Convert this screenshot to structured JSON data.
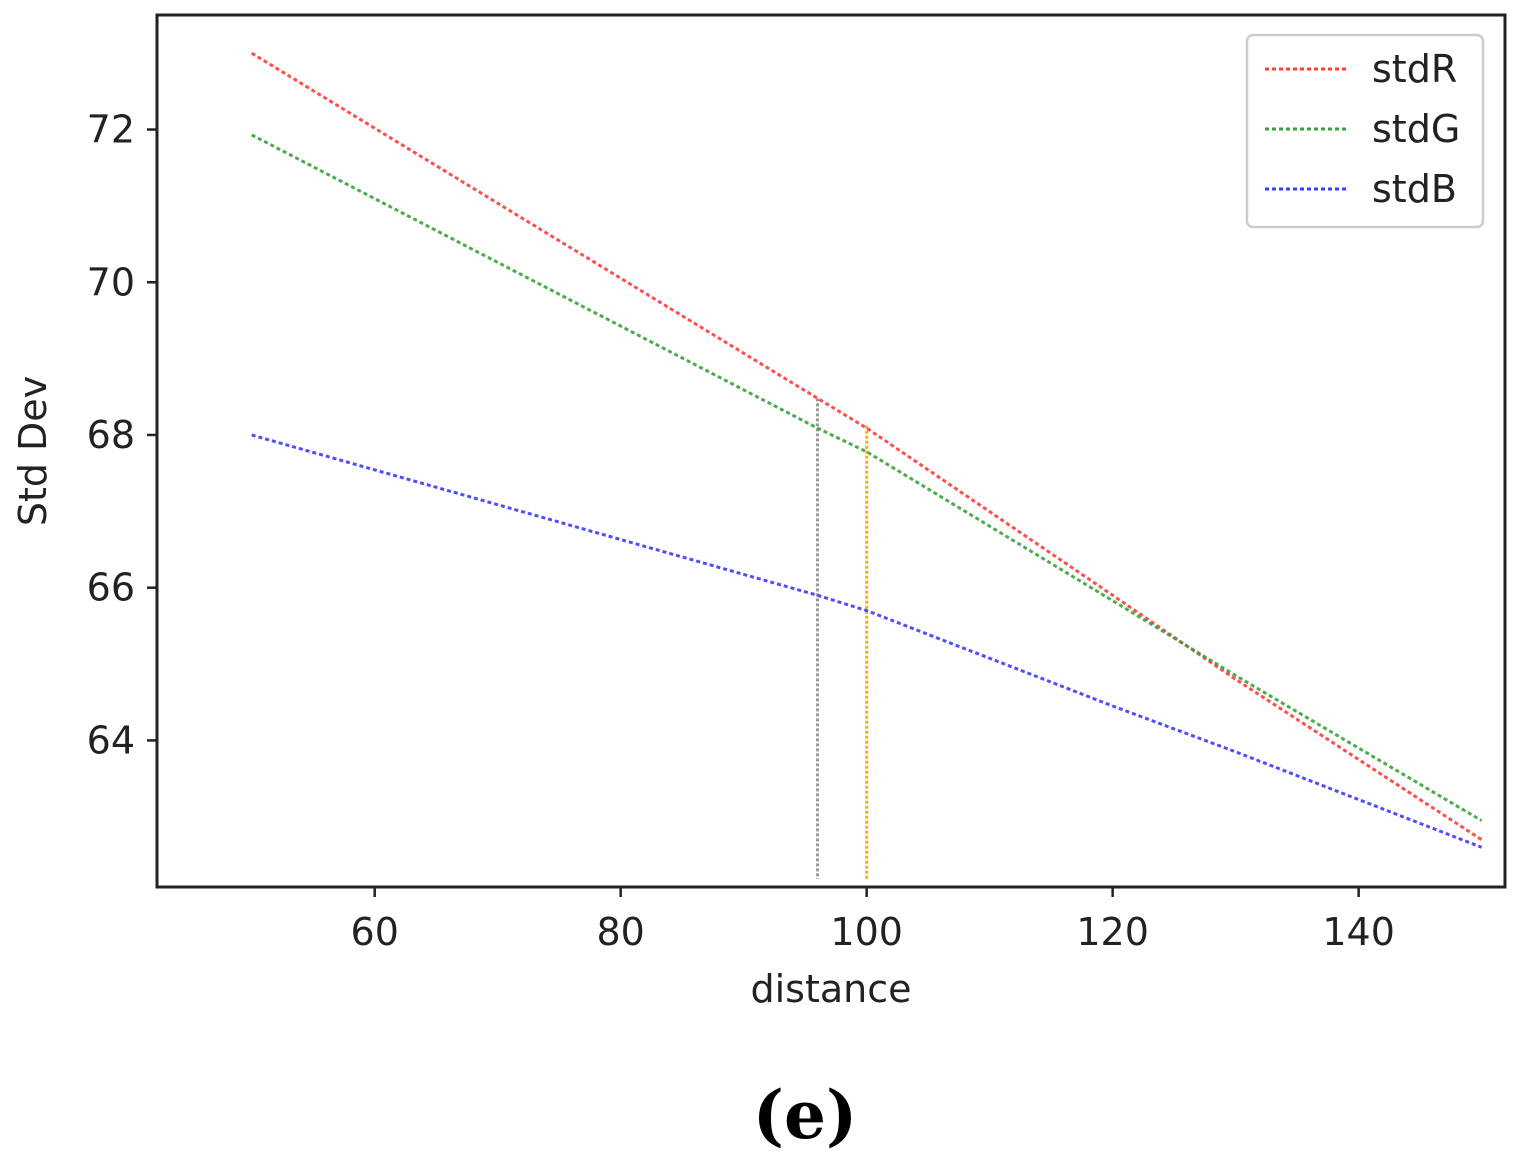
{
  "panel_label": "(e)",
  "chart_data": {
    "type": "line",
    "title": "",
    "xlabel": "distance",
    "ylabel": "Std Dev",
    "xlim": [
      42.3,
      151.9
    ],
    "ylim": [
      62.08,
      73.5
    ],
    "xticks": [
      60,
      80,
      100,
      120,
      140
    ],
    "yticks": [
      64,
      66,
      68,
      70,
      72
    ],
    "grid": false,
    "legend_position": "top-right",
    "series": [
      {
        "name": "stdR",
        "color": "#ff3b3b",
        "x": [
          50,
          96,
          100,
          120,
          130,
          150
        ],
        "y": [
          73.0,
          68.48,
          68.09,
          65.9,
          64.8,
          62.7
        ]
      },
      {
        "name": "stdG",
        "color": "#3aa23a",
        "x": [
          50,
          96,
          100,
          120,
          130,
          150
        ],
        "y": [
          71.93,
          68.09,
          67.78,
          65.83,
          64.85,
          62.95
        ]
      },
      {
        "name": "stdB",
        "color": "#3b3bff",
        "x": [
          50,
          96,
          100,
          120,
          130,
          150
        ],
        "y": [
          68.0,
          65.9,
          65.7,
          64.45,
          63.85,
          62.6
        ]
      }
    ],
    "annotations": [
      {
        "type": "vline",
        "x": 96,
        "y_top": 68.48,
        "color": "#9a9a9a"
      },
      {
        "type": "vline",
        "x": 100,
        "y_top": 68.12,
        "color": "#ffb000"
      }
    ]
  }
}
